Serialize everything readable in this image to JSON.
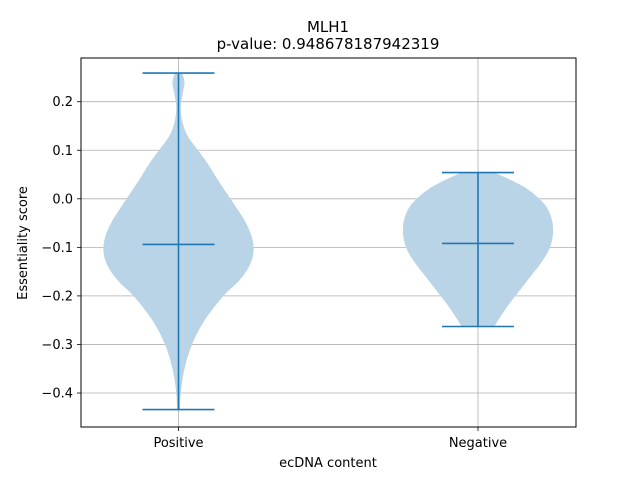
{
  "chart_data": {
    "type": "violin",
    "title": "MLH1",
    "subtitle": "p-value: 0.948678187942319",
    "xlabel": "ecDNA content",
    "ylabel": "Essentiality score",
    "ylim": [
      -0.47,
      0.29
    ],
    "yticks": [
      -0.4,
      -0.3,
      -0.2,
      -0.1,
      0.0,
      0.1,
      0.2
    ],
    "ytick_labels": [
      "−0.4",
      "−0.3",
      "−0.2",
      "−0.1",
      "0.0",
      "0.1",
      "0.2"
    ],
    "categories": [
      "Positive",
      "Negative"
    ],
    "grid": true,
    "colors": {
      "body": "#b9d4e7",
      "lines": "#1f77b4",
      "grid": "#b0b0b0"
    },
    "series": [
      {
        "category": "Positive",
        "min": -0.434,
        "max": 0.259,
        "median": -0.094,
        "density": [
          [
            -0.434,
            0.02
          ],
          [
            -0.4,
            0.03
          ],
          [
            -0.35,
            0.08
          ],
          [
            -0.3,
            0.18
          ],
          [
            -0.25,
            0.35
          ],
          [
            -0.2,
            0.6
          ],
          [
            -0.17,
            0.8
          ],
          [
            -0.14,
            0.94
          ],
          [
            -0.11,
            1.0
          ],
          [
            -0.08,
            0.98
          ],
          [
            -0.05,
            0.9
          ],
          [
            -0.02,
            0.78
          ],
          [
            0.01,
            0.65
          ],
          [
            0.04,
            0.52
          ],
          [
            0.07,
            0.4
          ],
          [
            0.1,
            0.26
          ],
          [
            0.13,
            0.12
          ],
          [
            0.16,
            0.05
          ],
          [
            0.19,
            0.03
          ],
          [
            0.22,
            0.06
          ],
          [
            0.24,
            0.08
          ],
          [
            0.259,
            0.05
          ]
        ]
      },
      {
        "category": "Negative",
        "min": -0.263,
        "max": 0.054,
        "median": -0.092,
        "density": [
          [
            -0.263,
            0.22
          ],
          [
            -0.25,
            0.27
          ],
          [
            -0.22,
            0.4
          ],
          [
            -0.19,
            0.55
          ],
          [
            -0.16,
            0.7
          ],
          [
            -0.13,
            0.85
          ],
          [
            -0.1,
            0.96
          ],
          [
            -0.07,
            1.0
          ],
          [
            -0.04,
            0.98
          ],
          [
            -0.01,
            0.88
          ],
          [
            0.02,
            0.66
          ],
          [
            0.04,
            0.42
          ],
          [
            0.054,
            0.22
          ]
        ]
      }
    ]
  }
}
